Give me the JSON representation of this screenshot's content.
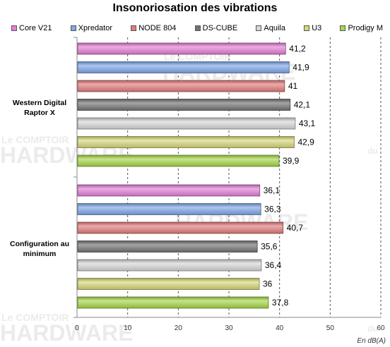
{
  "chart_data": {
    "type": "bar",
    "orientation": "horizontal",
    "title": "Insonoriosation des vibrations",
    "xlabel": "En dB(A)",
    "xlim": [
      0,
      60
    ],
    "xticks": [
      "0",
      "10",
      "20",
      "30",
      "40",
      "50",
      "60"
    ],
    "grid": "vertical",
    "legend_position": "top",
    "categories": [
      "Western Digital Raptor X",
      "Configuration au minimum"
    ],
    "series": [
      {
        "name": "Core V21",
        "color": "#e37fd6",
        "values": [
          41.2,
          36.1
        ],
        "labels": [
          "41,2",
          "36,1"
        ]
      },
      {
        "name": "Xpredator",
        "color": "#7fa8e8",
        "values": [
          41.9,
          36.3
        ],
        "labels": [
          "41,9",
          "36,3"
        ]
      },
      {
        "name": "NODE 804",
        "color": "#e47c7c",
        "values": [
          41,
          40.7
        ],
        "labels": [
          "41",
          "40,7"
        ]
      },
      {
        "name": "DS-CUBE",
        "color": "#747474",
        "values": [
          42.1,
          35.6
        ],
        "labels": [
          "42,1",
          "35,6"
        ]
      },
      {
        "name": "Aquila",
        "color": "#d8d8d8",
        "values": [
          43.1,
          36.4
        ],
        "labels": [
          "43,1",
          "36,4"
        ]
      },
      {
        "name": "U3",
        "color": "#d8d87a",
        "values": [
          42.9,
          36
        ],
        "labels": [
          "42,9",
          "36"
        ]
      },
      {
        "name": "Prodigy M",
        "color": "#a8d848",
        "values": [
          39.9,
          37.8
        ],
        "labels": [
          "39,9",
          "37,8"
        ]
      }
    ]
  },
  "watermark": {
    "line1": "Le COMPTOIR",
    "line2": "HARDWARE",
    "line3": "du"
  }
}
